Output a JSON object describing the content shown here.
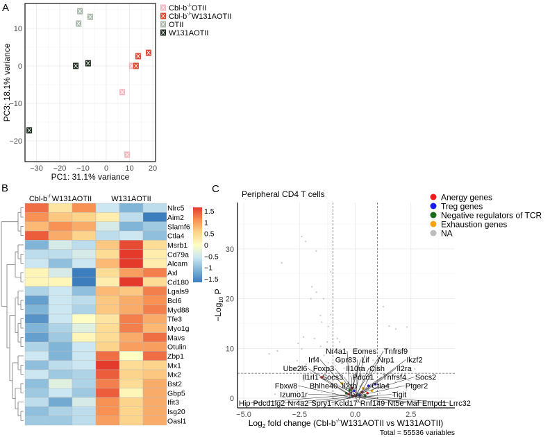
{
  "panels": {
    "a": "A",
    "b": "B",
    "c": "C"
  },
  "chart_data": [
    {
      "type": "scatter",
      "title": "",
      "xlabel": "PC1: 31.1% variance",
      "ylabel": "PC3: 18.1% variance",
      "xlim": [
        -35,
        21
      ],
      "ylim": [
        -25.5,
        17
      ],
      "xticks": [
        "-30",
        "-20",
        "-10",
        "0",
        "10",
        "20"
      ],
      "yticks": [
        "-20",
        "-10",
        "0",
        "10"
      ],
      "grid": true,
      "legend": "right",
      "series": [
        {
          "label_base": "Cbl-b",
          "label_sup": "-/-",
          "label_rest": "OTII",
          "color": "#f2b5bd",
          "points": [
            [
              11,
              0
            ],
            [
              6.9,
              -7
            ],
            [
              9,
              -23.7
            ]
          ]
        },
        {
          "label_base": "Cbl-b",
          "label_sup": "-/-",
          "label_rest": "W131AOTII",
          "color": "#e2432c",
          "points": [
            [
              13.7,
              2.6
            ],
            [
              12.8,
              0
            ],
            [
              18.2,
              3.5
            ]
          ]
        },
        {
          "label_base": "",
          "label_sup": "",
          "label_rest": "OTII",
          "color": "#a8b8a8",
          "points": [
            [
              -11.3,
              14.6
            ],
            [
              -6.9,
              13.1
            ],
            [
              -11.9,
              11.3
            ]
          ]
        },
        {
          "label_base": "",
          "label_sup": "",
          "label_rest": "W131AOTII",
          "color": "#1c2b1c",
          "points": [
            [
              -13.1,
              0
            ],
            [
              -7.8,
              0.7
            ],
            [
              -33.1,
              -17.2
            ]
          ]
        }
      ]
    },
    {
      "type": "heatmap",
      "column_groups": [
        {
          "label_base": "Cbl-b",
          "label_sup": "-/-",
          "label_rest": "W131AOTII",
          "columns": 3
        },
        {
          "label_base": "",
          "label_sup": "",
          "label_rest": "W131AOTII",
          "columns": 3
        }
      ],
      "rows": [
        "Nlrc5",
        "Aim2",
        "Slamf6",
        "Ctla4",
        "Msrb1",
        "Cd79a",
        "Alcam",
        "Axl",
        "Cd180",
        "Lgals9",
        "Bcl6",
        "Myd88",
        "Tfe3",
        "Myo1g",
        "Mavs",
        "Otulin",
        "Zbp1",
        "Mx1",
        "Mx2",
        "Bst2",
        "Gbp5",
        "Ifit3",
        "Isg20",
        "Oasl1"
      ],
      "values": [
        [
          1.2,
          0.3,
          1.0,
          -0.5,
          -1.0,
          -0.6
        ],
        [
          1.0,
          0.6,
          0.5,
          0.2,
          -0.6,
          -1.5
        ],
        [
          0.7,
          1.0,
          0.8,
          -0.4,
          -1.0,
          -0.8
        ],
        [
          1.3,
          0.8,
          0.5,
          -0.6,
          -0.5,
          -0.9
        ],
        [
          -1.0,
          -0.4,
          -0.6,
          0.6,
          1.4,
          0.4
        ],
        [
          -0.6,
          -0.6,
          -0.4,
          0.4,
          1.7,
          0.2
        ],
        [
          -0.5,
          -0.9,
          -0.5,
          0.7,
          1.5,
          0.2
        ],
        [
          0.1,
          -0.4,
          -1.5,
          0.4,
          0.9,
          1.1
        ],
        [
          0.1,
          0.1,
          -1.5,
          0.2,
          1.5,
          0.4
        ],
        [
          -0.7,
          -0.5,
          -0.9,
          0.7,
          0.6,
          1.1
        ],
        [
          -1.2,
          -0.5,
          -0.6,
          0.6,
          0.8,
          1.0
        ],
        [
          -1.0,
          -0.5,
          -0.7,
          0.6,
          0.8,
          1.1
        ],
        [
          -1.3,
          -0.5,
          0.0,
          0.3,
          1.1,
          0.8
        ],
        [
          -1.0,
          -0.7,
          -0.3,
          0.4,
          1.1,
          0.7
        ],
        [
          -1.2,
          -0.8,
          0.1,
          0.4,
          0.8,
          1.2
        ],
        [
          -0.7,
          -1.0,
          -0.5,
          0.5,
          0.9,
          0.9
        ],
        [
          -0.5,
          -1.0,
          -0.5,
          1.2,
          0.0,
          1.2
        ],
        [
          -0.9,
          -0.6,
          -0.5,
          1.5,
          0.4,
          0.5
        ],
        [
          -0.5,
          -0.8,
          -0.7,
          1.3,
          0.5,
          0.6
        ],
        [
          -0.9,
          -0.3,
          -0.7,
          1.1,
          0.4,
          0.8
        ],
        [
          -0.8,
          -0.5,
          -0.8,
          1.3,
          0.1,
          0.8
        ],
        [
          -0.6,
          -1.1,
          -0.4,
          1.0,
          0.5,
          0.8
        ],
        [
          -0.9,
          -0.7,
          -0.6,
          1.0,
          0.5,
          0.8
        ],
        [
          -0.8,
          -0.8,
          -0.6,
          0.9,
          0.5,
          0.8
        ]
      ],
      "colorbar_ticks": [
        "1.5",
        "1",
        "0.5",
        "0",
        "-0.5",
        "-1",
        "-1.5"
      ],
      "colorscale": [
        "#3b7dbd",
        "#80b5d7",
        "#cce7f1",
        "#fefdc3",
        "#fdd48b",
        "#f79154",
        "#e43a2c"
      ],
      "vlim": [
        -1.5,
        1.5
      ]
    },
    {
      "type": "scatter",
      "title": "Peripheral CD4 T cells",
      "xlabel_parts": [
        "Log",
        "2",
        " fold change (Cbl-b",
        "-/-",
        "W131AOTII vs W131AOTII)"
      ],
      "ylabel_parts": [
        "−Log",
        "10",
        " P"
      ],
      "caption": "Total = 55536 variables",
      "xlim": [
        -5.3,
        4.45
      ],
      "ylim": [
        -2,
        39.3
      ],
      "xticks": [
        "-5.0",
        "-2.5",
        "0.0",
        "2.5"
      ],
      "yticks": [
        "0",
        "10",
        "20",
        "30"
      ],
      "fc_cutoff": 1,
      "p_cutoff": 5,
      "grid": true,
      "legend": "top-right",
      "legend_entries": [
        {
          "label": "Anergy genes",
          "color": "#ee1c1c"
        },
        {
          "label": "Treg genes",
          "color": "#1a1aee"
        },
        {
          "label": "Negative regulators of TCR",
          "color": "#1a6b1a"
        },
        {
          "label": "Exhaustion genes",
          "color": "#f5a50a"
        },
        {
          "label": "NA",
          "color": "#bdbdbd"
        }
      ],
      "points": {
        "NA": [
          [
            -2.4,
            32.5
          ],
          [
            -2.22,
            31.5
          ],
          [
            -1.75,
            29.6
          ],
          [
            -3.3,
            27.2
          ],
          [
            -1.1,
            25.4
          ],
          [
            -1.94,
            22.4
          ],
          [
            -1.74,
            21.3
          ],
          [
            -1.99,
            20.0
          ],
          [
            -1.42,
            20.0
          ],
          [
            -1.56,
            16.6
          ],
          [
            -1.11,
            16.8
          ],
          [
            -1.5,
            15.3
          ],
          [
            -1.21,
            14.4
          ],
          [
            -1.0,
            15.2
          ],
          [
            1.26,
            18.4
          ],
          [
            1.52,
            14.5
          ],
          [
            1.82,
            13.9
          ],
          [
            2.32,
            14.3
          ],
          [
            -3.86,
            8.9
          ],
          [
            -3.49,
            9.5
          ],
          [
            -2.56,
            11.0
          ],
          [
            -2.32,
            12.3
          ],
          [
            -1.83,
            12.0
          ],
          [
            -1.26,
            11.3
          ],
          [
            -0.8,
            12.0
          ],
          [
            -0.7,
            11.3
          ],
          [
            -2.4,
            9.9
          ],
          [
            -1.55,
            10.4
          ],
          [
            2.67,
            5.9
          ],
          [
            -2.6,
            7.5
          ],
          [
            -2.2,
            6.8
          ],
          [
            -1.9,
            7.9
          ],
          [
            -1.7,
            6.2
          ],
          [
            -1.4,
            8.6
          ],
          [
            -1.2,
            7.1
          ],
          [
            -1.0,
            9.0
          ],
          [
            -0.9,
            6.5
          ],
          [
            -0.6,
            8.0
          ],
          [
            -0.5,
            6.0
          ],
          [
            -2.0,
            5.2
          ],
          [
            -1.6,
            4.8
          ],
          [
            -1.3,
            5.5
          ],
          [
            -1.1,
            4.2
          ],
          [
            -0.8,
            4.9
          ],
          [
            -0.6,
            3.8
          ],
          [
            -0.4,
            5.1
          ],
          [
            -0.3,
            3.2
          ],
          [
            -0.2,
            4.4
          ],
          [
            0.1,
            3.9
          ],
          [
            0.3,
            4.6
          ],
          [
            0.5,
            3.4
          ],
          [
            0.7,
            4.1
          ],
          [
            0.9,
            5.3
          ],
          [
            1.2,
            3.7
          ],
          [
            1.5,
            4.4
          ],
          [
            1.8,
            3.3
          ],
          [
            2.1,
            4.9
          ],
          [
            2.4,
            3.6
          ],
          [
            -2.3,
            3.5
          ],
          [
            -2.8,
            2.9
          ],
          [
            -3.2,
            2.4
          ],
          [
            -1.8,
            2.8
          ],
          [
            -1.2,
            2.3
          ],
          [
            -0.7,
            2.0
          ],
          [
            -0.2,
            1.6
          ],
          [
            0.2,
            2.4
          ],
          [
            0.6,
            1.9
          ],
          [
            1.0,
            2.6
          ],
          [
            1.4,
            1.8
          ],
          [
            1.9,
            2.2
          ],
          [
            2.3,
            1.6
          ],
          [
            -2.6,
            1.4
          ],
          [
            -1.5,
            1.2
          ],
          [
            -0.9,
            0.9
          ],
          [
            0.4,
            0.8
          ],
          [
            1.1,
            1.0
          ],
          [
            1.7,
            0.6
          ],
          [
            -3.6,
            0.8
          ],
          [
            -0.1,
            0.4
          ],
          [
            0.8,
            7.6
          ],
          [
            0.5,
            9.4
          ],
          [
            1.1,
            8.5
          ]
        ],
        "Anergy genes": [
          [
            -0.1,
            0.5
          ],
          [
            0.3,
            1.2
          ],
          [
            -0.3,
            0.8
          ],
          [
            0.55,
            1.0
          ],
          [
            -0.15,
            2.0
          ],
          [
            -1.5,
            4.2
          ]
        ],
        "Treg genes": [
          [
            0.6,
            2.5
          ],
          [
            0.9,
            2.8
          ],
          [
            0.2,
            0.6
          ],
          [
            -0.05,
            1.5
          ]
        ],
        "Negative regulators of TCR": [
          [
            -0.4,
            1.0
          ],
          [
            0.45,
            0.5
          ],
          [
            -0.25,
            1.6
          ]
        ],
        "Exhaustion genes": [
          [
            0.75,
            1.5
          ],
          [
            -0.6,
            3.0
          ],
          [
            0.35,
            2.0
          ]
        ]
      },
      "gene_labels": [
        "Nr4a1",
        "Eomes",
        "Tnfrsf9",
        "Irf4",
        "Gpr83",
        "Lif",
        "Nrp1",
        "Ikzf2",
        "Ube2l6",
        "Foxp3",
        "Il10ra",
        "Cish",
        "Il2ra",
        "Il1rl1",
        "Socs3",
        "Pdcd1",
        "Tnfrsf4",
        "Socs2",
        "Fbxw8",
        "Bhlhe40",
        "Il2rb",
        "Ctla4",
        "Ptger2",
        "Izumo1r",
        "Tigit",
        "Hip",
        "Pdcd1lg2",
        "Nr4a2",
        "Spry1",
        "Kcld17",
        "Rnf149",
        "Nt5e",
        "Maf",
        "Entpd1",
        "Lrrc32"
      ]
    }
  ]
}
